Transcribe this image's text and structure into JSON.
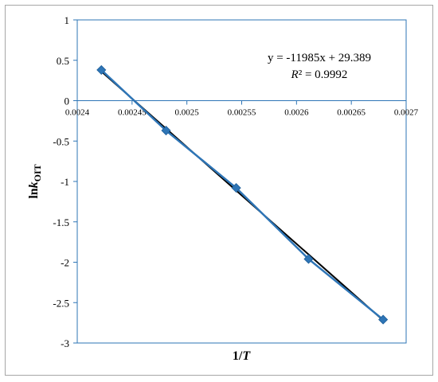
{
  "chart_data": {
    "type": "scatter",
    "xlabel_main": "1/",
    "xlabel_italic": "T",
    "ylabel_main": "ln",
    "ylabel_italic": "k",
    "ylabel_sub": "OIT",
    "xlim": [
      0.0024,
      0.0027
    ],
    "ylim": [
      -3,
      1
    ],
    "x_ticks": [
      "0.0024",
      "0.00245",
      "0.0025",
      "0.00255",
      "0.0026",
      "0.00265",
      "0.0027"
    ],
    "y_ticks": [
      "1",
      "0.5",
      "0",
      "-0.5",
      "-1",
      "-1.5",
      "-2",
      "-2.5",
      "-3"
    ],
    "series": [
      {
        "x": [
          0.002422,
          0.002481,
          0.002545,
          0.002611,
          0.002679
        ],
        "y": [
          0.38,
          -0.37,
          -1.08,
          -1.96,
          -2.71
        ],
        "color": "#2e75b6"
      }
    ],
    "trendline": {
      "slope": -11985,
      "intercept": 29.389,
      "color": "#000000"
    },
    "annotation": {
      "equation": "y = -11985x + 29.389",
      "r2_label": "R",
      "r2_value": "² = 0.9992"
    },
    "grid": false
  }
}
